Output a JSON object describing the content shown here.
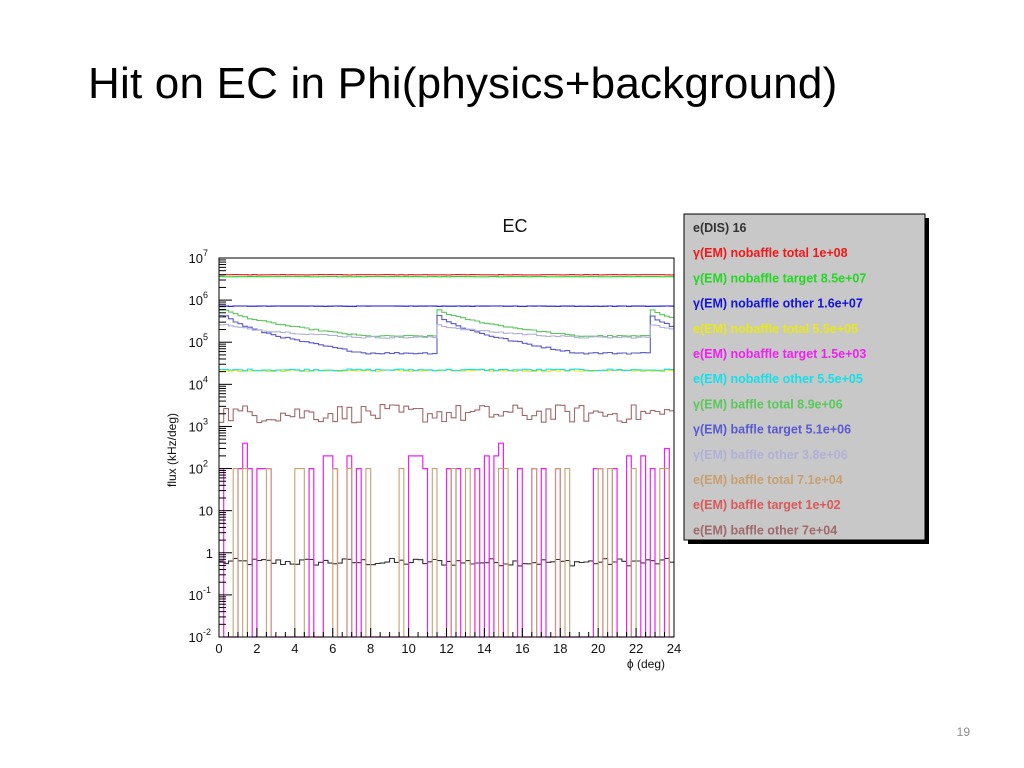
{
  "slide": {
    "title": "Hit on EC in Phi(physics+background)",
    "page_number": "19"
  },
  "chart_data": {
    "type": "histogram",
    "title": "EC",
    "xlabel": "ϕ (deg)",
    "ylabel": "flux (kHz/deg)",
    "xlim": [
      0,
      24
    ],
    "ylim": [
      0.01,
      10000000
    ],
    "log_y": true,
    "grid": false,
    "legend_position": "right",
    "x_ticks": [
      0,
      2,
      4,
      6,
      8,
      10,
      12,
      14,
      16,
      18,
      20,
      22,
      24
    ],
    "x_tick_labels": [
      "0",
      "2",
      "4",
      "6",
      "8",
      "10",
      "12",
      "14",
      "16",
      "18",
      "20",
      "22",
      "24"
    ],
    "y_ticks": [
      0.01,
      0.1,
      1,
      10,
      100,
      1000,
      10000,
      100000,
      1000000,
      10000000
    ],
    "y_tick_labels": [
      {
        "base": "10",
        "exp": "-2"
      },
      {
        "base": "10",
        "exp": "-1"
      },
      {
        "base": "1",
        "exp": ""
      },
      {
        "base": "10",
        "exp": ""
      },
      {
        "base": "10",
        "exp": "2"
      },
      {
        "base": "10",
        "exp": "3"
      },
      {
        "base": "10",
        "exp": "4"
      },
      {
        "base": "10",
        "exp": "5"
      },
      {
        "base": "10",
        "exp": "6"
      },
      {
        "base": "10",
        "exp": "7"
      }
    ],
    "series": [
      {
        "name": "e(DIS)  16",
        "color": "#333333",
        "shape": "flat",
        "level": 0.6,
        "jitter": 0.09
      },
      {
        "name": "γ(EM) nobaffle total  1e+08",
        "color": "#f01818",
        "shape": "flat",
        "level": 4000000,
        "jitter": 0.004
      },
      {
        "name": "γ(EM) nobaffle target  8.5e+07",
        "color": "#22d822",
        "shape": "flat",
        "level": 3600000,
        "jitter": 0.004
      },
      {
        "name": "γ(EM) nobaffle other  1.6e+07",
        "color": "#1414d8",
        "shape": "flat",
        "level": 720000,
        "jitter": 0.004
      },
      {
        "name": "e(EM) nobaffle total  5.5e+05",
        "color": "#e8e81a",
        "shape": "flat",
        "level": 21000,
        "jitter": 0.02
      },
      {
        "name": "e(EM) nobaffle target  1.5e+03",
        "color": "#ee22ee",
        "shape": "spiky",
        "level": 100,
        "jitter": 0
      },
      {
        "name": "e(EM) nobaffle other  5.5e+05",
        "color": "#15e0e8",
        "shape": "flat",
        "level": 22000,
        "jitter": 0.02
      },
      {
        "name": "γ(EM) baffle total  8.9e+06",
        "color": "#5ac85a",
        "shape": "sector",
        "start": 700000,
        "end": 140000,
        "jitter": 0.015
      },
      {
        "name": "γ(EM) baffle target  5.1e+06",
        "color": "#5a5ad2",
        "shape": "sector",
        "start": 550000,
        "end": 55000,
        "jitter": 0.02
      },
      {
        "name": "γ(EM) baffle other  3.8e+06",
        "color": "#b0b0d8",
        "shape": "sector",
        "start": 280000,
        "end": 130000,
        "jitter": 0.02
      },
      {
        "name": "e(EM) baffle total  7.1e+04",
        "color": "#c8a070",
        "shape": "spiky_sparse",
        "level": 100,
        "jitter": 0
      },
      {
        "name": "e(EM) baffle target  1e+02",
        "color": "#d85a5a",
        "shape": "none",
        "level": 0.01,
        "jitter": 0
      },
      {
        "name": "e(EM) baffle other  7e+04",
        "color": "#a06a6a",
        "shape": "flat",
        "level": 2000,
        "jitter": 0.22
      }
    ]
  }
}
